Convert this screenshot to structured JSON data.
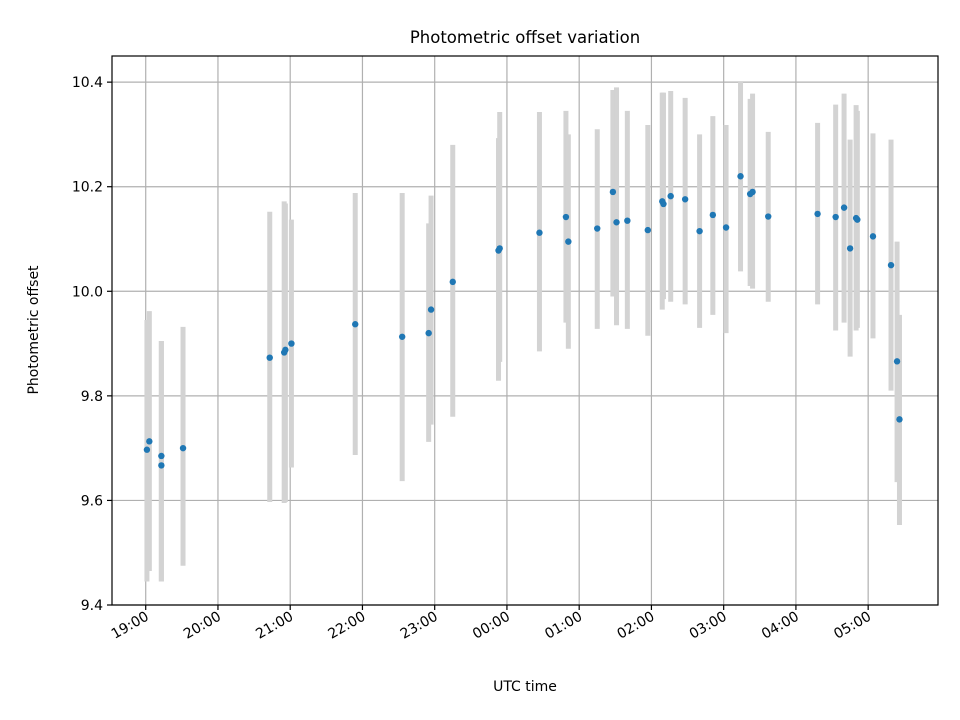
{
  "chart_data": {
    "type": "scatter",
    "title": "Photometric offset variation",
    "xlabel": "UTC time",
    "ylabel": "Photometric offset",
    "x_axis_type": "time",
    "x_start_date": "",
    "xlim": [
      "18:32",
      "05:58"
    ],
    "ylim": [
      9.4,
      10.45
    ],
    "x_ticks": [
      "19:00",
      "20:00",
      "21:00",
      "22:00",
      "23:00",
      "00:00",
      "01:00",
      "02:00",
      "03:00",
      "04:00",
      "05:00"
    ],
    "y_ticks": [
      9.4,
      9.6,
      9.8,
      10.0,
      10.2,
      10.4
    ],
    "y_tick_labels": [
      "9.4",
      "9.6",
      "9.8",
      "10.0",
      "10.2",
      "10.4"
    ],
    "grid": true,
    "legend": "none",
    "x_tick_rotation": "30deg",
    "colors": {
      "point": "#1f77b4",
      "errorbar": "#d3d3d3",
      "grid": "#b0b0b0"
    },
    "series": [
      {
        "x": [
          "19:01",
          "19:03",
          "19:13",
          "19:13",
          "19:31",
          "20:43",
          "20:55",
          "20:56",
          "21:01",
          "21:54",
          "22:33",
          "22:55",
          "22:57",
          "23:15",
          "23:53",
          "23:54",
          "00:27",
          "00:49",
          "00:51",
          "01:15",
          "01:28",
          "01:31",
          "01:40",
          "01:57",
          "02:09",
          "02:10",
          "02:16",
          "02:28",
          "02:40",
          "02:51",
          "03:02",
          "03:14",
          "03:22",
          "03:24",
          "03:37",
          "04:18",
          "04:33",
          "04:40",
          "04:45",
          "04:50",
          "04:51",
          "05:04",
          "05:19",
          "05:24",
          "05:26"
        ],
        "y": [
          9.697,
          9.713,
          9.685,
          9.667,
          9.7,
          9.873,
          9.883,
          9.888,
          9.9,
          9.937,
          9.913,
          9.92,
          9.965,
          10.018,
          10.078,
          10.082,
          10.112,
          10.142,
          10.095,
          10.12,
          10.19,
          10.132,
          10.135,
          10.117,
          10.172,
          10.167,
          10.182,
          10.176,
          10.115,
          10.146,
          10.122,
          10.22,
          10.186,
          10.19,
          10.143,
          10.148,
          10.142,
          10.16,
          10.082,
          10.14,
          10.137,
          10.105,
          10.05,
          9.866,
          9.755
        ],
        "err_low": [
          9.445,
          9.465,
          9.445,
          9.445,
          9.475,
          9.597,
          9.595,
          9.597,
          9.663,
          9.687,
          9.637,
          9.712,
          9.745,
          9.76,
          9.829,
          9.865,
          9.885,
          9.94,
          9.89,
          9.928,
          9.99,
          9.935,
          9.928,
          9.915,
          9.965,
          9.985,
          9.98,
          9.975,
          9.93,
          9.955,
          9.92,
          10.038,
          10.01,
          10.005,
          9.98,
          9.975,
          9.925,
          9.94,
          9.875,
          9.925,
          9.93,
          9.91,
          9.81,
          9.635,
          9.553
        ],
        "err_high": [
          9.945,
          9.962,
          9.905,
          9.905,
          9.932,
          10.152,
          10.172,
          10.168,
          10.137,
          10.188,
          10.188,
          10.13,
          10.183,
          10.28,
          10.293,
          10.343,
          10.343,
          10.345,
          10.3,
          10.31,
          10.385,
          10.39,
          10.345,
          10.318,
          10.38,
          10.38,
          10.383,
          10.37,
          10.3,
          10.335,
          10.318,
          10.402,
          10.368,
          10.378,
          10.305,
          10.322,
          10.357,
          10.378,
          10.29,
          10.356,
          10.345,
          10.302,
          10.29,
          10.095,
          9.955
        ]
      }
    ]
  }
}
